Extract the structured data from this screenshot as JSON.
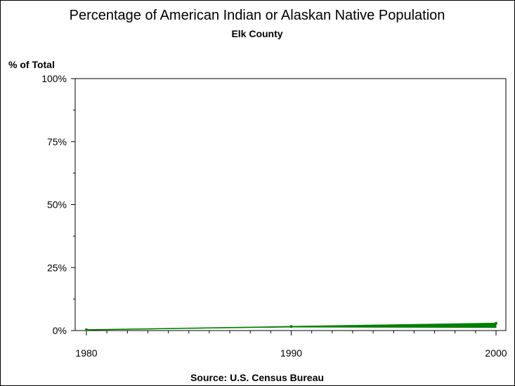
{
  "chart_data": {
    "type": "area",
    "title": "Percentage of American Indian or Alaskan Native Population",
    "subtitle": "Elk County",
    "ylabel": "% of Total",
    "xlabel": "",
    "footnote": "Source: U.S. Census Bureau",
    "x": [
      1980,
      1990,
      2000
    ],
    "series": [
      {
        "lower": [
          0.3,
          1.4,
          1.2
        ],
        "upper": [
          0.3,
          1.6,
          2.9
        ],
        "color": "#008000"
      }
    ],
    "xlim": [
      1980,
      2000
    ],
    "ylim": [
      0,
      100
    ],
    "xticks": [
      1980,
      1990,
      2000
    ],
    "xtick_labels": [
      "1980",
      "1990",
      "2000"
    ],
    "yticks": [
      0,
      25,
      50,
      75,
      100
    ],
    "ytick_labels": [
      "0%",
      "25%",
      "50%",
      "75%",
      "100%"
    ],
    "x_minor_per_major": 10,
    "y_minor_per_major": 2,
    "grid": false,
    "legend": "none"
  }
}
